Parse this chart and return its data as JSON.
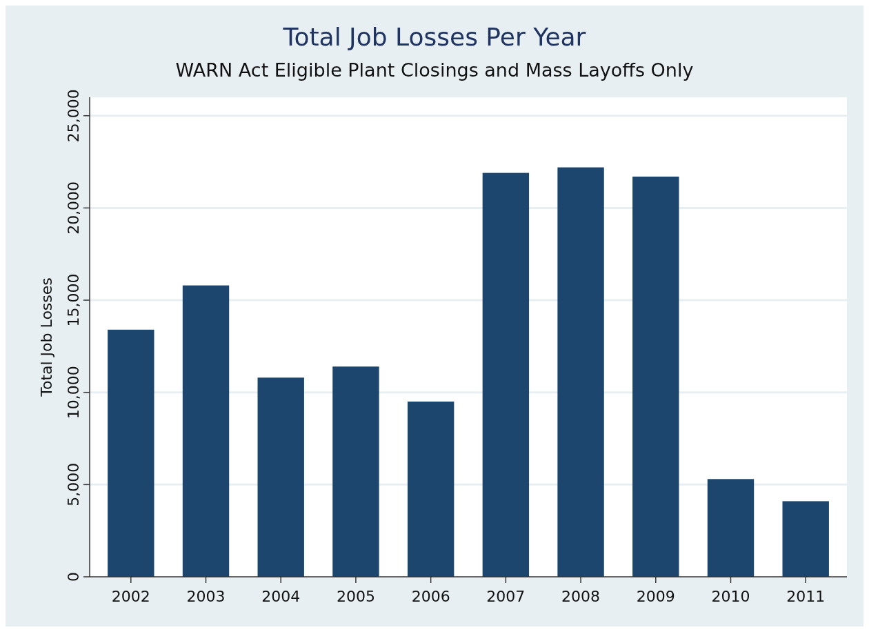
{
  "chart_data": {
    "type": "bar",
    "title": "Total Job Losses Per Year",
    "subtitle": "WARN Act Eligible Plant Closings and Mass Layoffs Only",
    "ylabel": "Total Job Losses",
    "categories": [
      "2002",
      "2003",
      "2004",
      "2005",
      "2006",
      "2007",
      "2008",
      "2009",
      "2010",
      "2011"
    ],
    "values": [
      13400,
      15800,
      10800,
      11400,
      9500,
      21900,
      22200,
      21700,
      5300,
      4100
    ],
    "color": "#1c466e",
    "ylim": [
      0,
      26000
    ],
    "yticks": [
      0,
      {
        "value": 5000,
        "label": "5,000"
      },
      {
        "value": 10000,
        "label": "10,000"
      },
      {
        "value": 15000,
        "label": "15,000"
      },
      {
        "value": 20000,
        "label": "20,000"
      },
      {
        "value": 25000,
        "label": "25,000"
      }
    ],
    "grid": "y"
  }
}
